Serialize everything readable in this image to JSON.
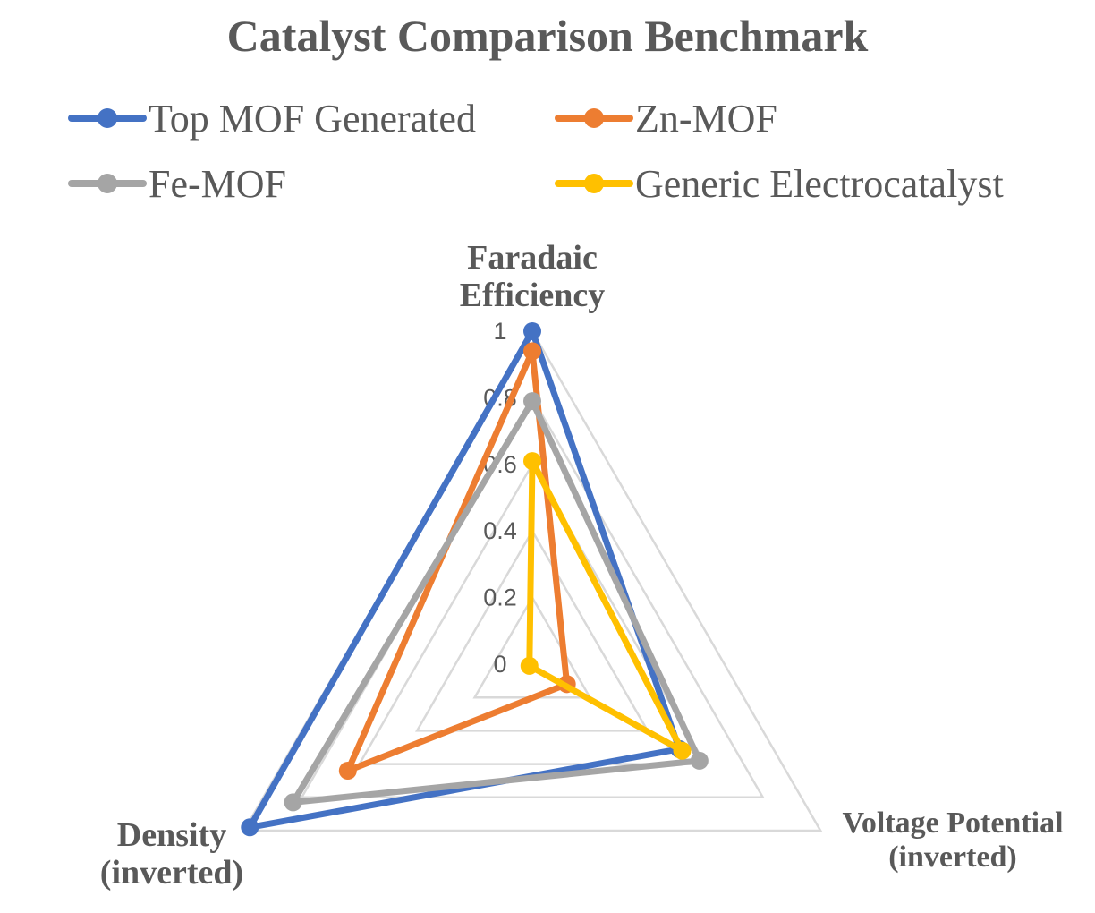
{
  "chart_data": {
    "type": "radar",
    "title": "Catalyst Comparison Benchmark",
    "axes": [
      [
        "Faradaic",
        "Efficiency"
      ],
      [
        "Voltage Potential",
        "(inverted)"
      ],
      [
        "Density",
        "(inverted)"
      ]
    ],
    "ticks": [
      "0",
      "0.2",
      "0.4",
      "0.6",
      "0.8",
      "1"
    ],
    "range": [
      0,
      1
    ],
    "grid": true,
    "legend_position": "top",
    "series": [
      {
        "name": "Top MOF Generated",
        "color": "#4472C4",
        "values": [
          1.0,
          0.51,
          0.98
        ]
      },
      {
        "name": "Zn-MOF",
        "color": "#ED7D31",
        "values": [
          0.94,
          0.12,
          0.64
        ]
      },
      {
        "name": "Fe-MOF",
        "color": "#A5A5A5",
        "values": [
          0.79,
          0.58,
          0.83
        ]
      },
      {
        "name": "Generic Electrocatalyst",
        "color": "#FFC000",
        "values": [
          0.61,
          0.52,
          0.01
        ]
      }
    ]
  }
}
